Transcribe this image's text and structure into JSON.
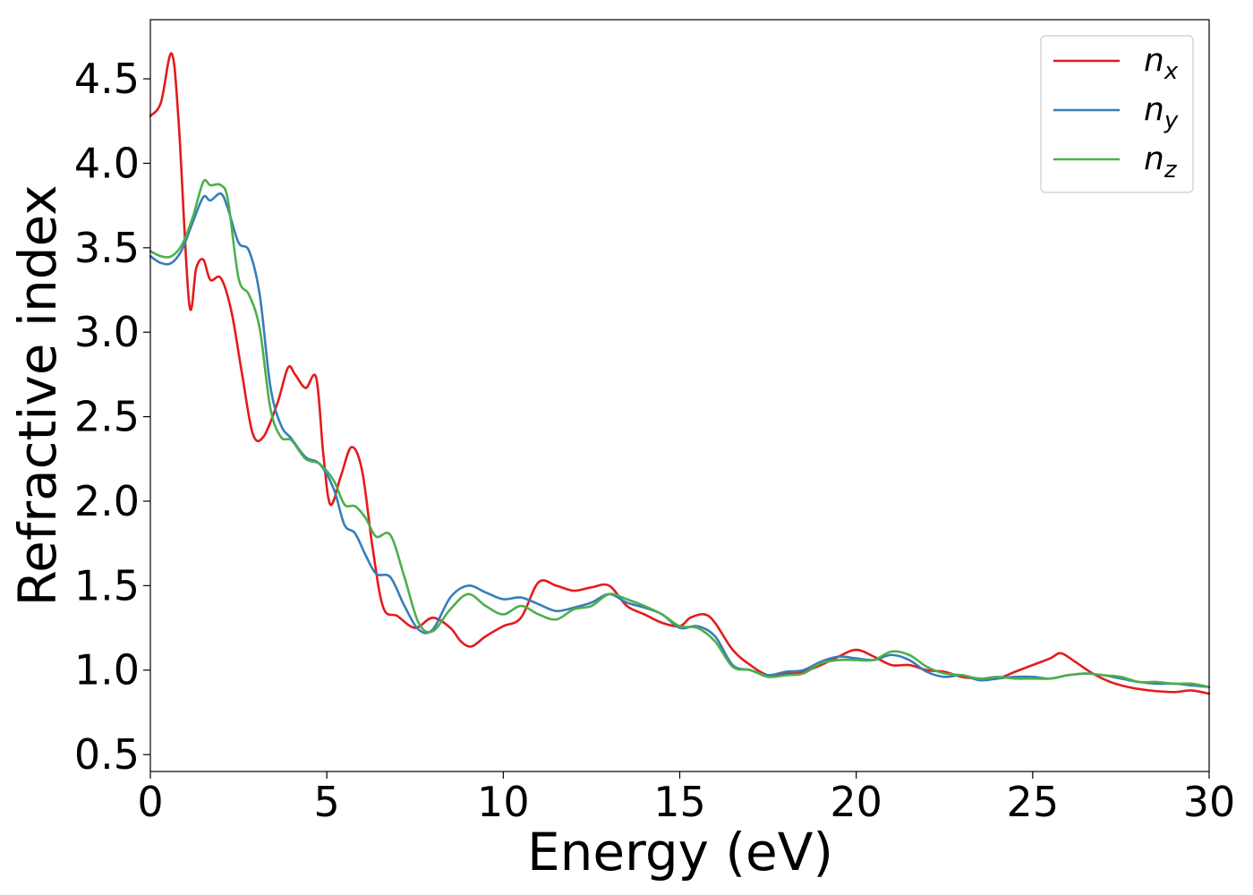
{
  "chart_data": {
    "type": "line",
    "xlabel": "Energy (eV)",
    "ylabel": "Refractive index",
    "xlim": [
      0,
      30
    ],
    "ylim": [
      0.4,
      4.85
    ],
    "xticks": [
      0,
      5,
      10,
      15,
      20,
      25,
      30
    ],
    "xtick_labels": [
      "0",
      "5",
      "10",
      "15",
      "20",
      "25",
      "30"
    ],
    "yticks": [
      0.5,
      1.0,
      1.5,
      2.0,
      2.5,
      3.0,
      3.5,
      4.0,
      4.5
    ],
    "ytick_labels": [
      "0.5",
      "1.0",
      "1.5",
      "2.0",
      "2.5",
      "3.0",
      "3.5",
      "4.0",
      "4.5"
    ],
    "grid": false,
    "legend_position": "top-right",
    "series": [
      {
        "name": "n_x",
        "label_base": "n",
        "label_sub": "x",
        "color": "#e41a1c",
        "x": [
          0,
          0.3,
          0.6,
          0.8,
          1.1,
          1.3,
          1.5,
          1.7,
          2.0,
          2.3,
          2.6,
          2.9,
          3.2,
          3.6,
          3.9,
          4.1,
          4.4,
          4.7,
          4.9,
          5.1,
          5.4,
          5.7,
          6.0,
          6.3,
          6.6,
          7.0,
          7.5,
          8.0,
          8.5,
          8.8,
          9.1,
          9.5,
          10.0,
          10.5,
          11.0,
          11.5,
          12.0,
          12.5,
          13.0,
          13.5,
          14.0,
          14.5,
          15.0,
          15.3,
          15.7,
          16.0,
          16.5,
          17.0,
          17.5,
          18.0,
          18.5,
          19.0,
          19.5,
          20.0,
          20.5,
          21.0,
          21.5,
          22.0,
          22.5,
          23.0,
          23.5,
          24.0,
          24.5,
          25.0,
          25.5,
          25.8,
          26.2,
          26.7,
          27.2,
          27.7,
          28.3,
          29.0,
          29.5,
          30.0
        ],
        "y": [
          4.28,
          4.36,
          4.65,
          4.25,
          3.17,
          3.38,
          3.43,
          3.31,
          3.32,
          3.12,
          2.75,
          2.4,
          2.38,
          2.58,
          2.79,
          2.75,
          2.67,
          2.73,
          2.28,
          1.98,
          2.15,
          2.32,
          2.18,
          1.72,
          1.37,
          1.32,
          1.25,
          1.31,
          1.25,
          1.17,
          1.14,
          1.2,
          1.26,
          1.31,
          1.52,
          1.5,
          1.47,
          1.49,
          1.5,
          1.38,
          1.33,
          1.28,
          1.26,
          1.31,
          1.33,
          1.28,
          1.12,
          1.03,
          0.97,
          0.98,
          0.99,
          1.03,
          1.08,
          1.12,
          1.08,
          1.03,
          1.03,
          1.0,
          0.99,
          0.96,
          0.95,
          0.95,
          0.99,
          1.03,
          1.07,
          1.1,
          1.05,
          0.98,
          0.93,
          0.9,
          0.88,
          0.87,
          0.88,
          0.86
        ]
      },
      {
        "name": "n_y",
        "label_base": "n",
        "label_sub": "y",
        "color": "#377eb8",
        "x": [
          0,
          0.3,
          0.6,
          0.9,
          1.2,
          1.5,
          1.7,
          2.0,
          2.2,
          2.5,
          2.8,
          3.1,
          3.4,
          3.7,
          4.0,
          4.4,
          4.8,
          5.2,
          5.5,
          5.8,
          6.1,
          6.4,
          6.8,
          7.2,
          7.6,
          8.0,
          8.5,
          9.0,
          9.5,
          10.0,
          10.5,
          11.0,
          11.5,
          12.0,
          12.5,
          13.0,
          13.5,
          14.0,
          14.5,
          15.0,
          15.5,
          16.0,
          16.5,
          17.0,
          17.5,
          18.0,
          18.5,
          19.0,
          19.5,
          20.0,
          20.5,
          21.0,
          21.5,
          22.0,
          22.5,
          23.0,
          23.5,
          24.0,
          24.5,
          25.0,
          25.5,
          26.0,
          26.5,
          27.0,
          27.5,
          28.0,
          28.5,
          29.0,
          29.5,
          30.0
        ],
        "y": [
          3.45,
          3.41,
          3.41,
          3.49,
          3.65,
          3.8,
          3.78,
          3.82,
          3.73,
          3.53,
          3.48,
          3.22,
          2.68,
          2.45,
          2.37,
          2.26,
          2.22,
          2.07,
          1.86,
          1.81,
          1.68,
          1.57,
          1.55,
          1.38,
          1.24,
          1.24,
          1.43,
          1.5,
          1.46,
          1.42,
          1.43,
          1.39,
          1.35,
          1.37,
          1.4,
          1.45,
          1.4,
          1.37,
          1.33,
          1.25,
          1.26,
          1.2,
          1.03,
          1.0,
          0.97,
          0.99,
          1.0,
          1.05,
          1.08,
          1.07,
          1.06,
          1.09,
          1.06,
          0.99,
          0.96,
          0.97,
          0.94,
          0.95,
          0.96,
          0.96,
          0.95,
          0.97,
          0.98,
          0.97,
          0.95,
          0.93,
          0.92,
          0.92,
          0.91,
          0.9
        ]
      },
      {
        "name": "n_z",
        "label_base": "n",
        "label_sub": "z",
        "color": "#4daf4a",
        "x": [
          0,
          0.3,
          0.6,
          0.9,
          1.2,
          1.5,
          1.7,
          2.0,
          2.2,
          2.5,
          2.8,
          3.1,
          3.4,
          3.7,
          4.0,
          4.4,
          4.8,
          5.2,
          5.5,
          5.8,
          6.1,
          6.4,
          6.8,
          7.2,
          7.6,
          8.0,
          8.5,
          9.0,
          9.5,
          10.0,
          10.5,
          11.0,
          11.5,
          12.0,
          12.5,
          13.0,
          13.5,
          14.0,
          14.5,
          15.0,
          15.5,
          16.0,
          16.5,
          17.0,
          17.5,
          18.0,
          18.5,
          19.0,
          19.5,
          20.0,
          20.5,
          21.0,
          21.5,
          22.0,
          22.5,
          23.0,
          23.5,
          24.0,
          24.5,
          25.0,
          25.5,
          26.0,
          26.5,
          27.0,
          27.5,
          28.0,
          28.5,
          29.0,
          29.5,
          30.0
        ],
        "y": [
          3.48,
          3.45,
          3.45,
          3.52,
          3.68,
          3.89,
          3.87,
          3.87,
          3.78,
          3.32,
          3.22,
          3.02,
          2.55,
          2.38,
          2.36,
          2.25,
          2.22,
          2.12,
          1.98,
          1.97,
          1.9,
          1.79,
          1.8,
          1.55,
          1.28,
          1.23,
          1.36,
          1.45,
          1.38,
          1.33,
          1.38,
          1.33,
          1.3,
          1.36,
          1.38,
          1.45,
          1.42,
          1.38,
          1.33,
          1.26,
          1.25,
          1.17,
          1.02,
          1.0,
          0.96,
          0.97,
          0.98,
          1.04,
          1.06,
          1.06,
          1.06,
          1.11,
          1.09,
          1.02,
          0.98,
          0.97,
          0.95,
          0.96,
          0.95,
          0.95,
          0.95,
          0.97,
          0.98,
          0.97,
          0.96,
          0.93,
          0.93,
          0.92,
          0.92,
          0.9
        ]
      }
    ]
  }
}
